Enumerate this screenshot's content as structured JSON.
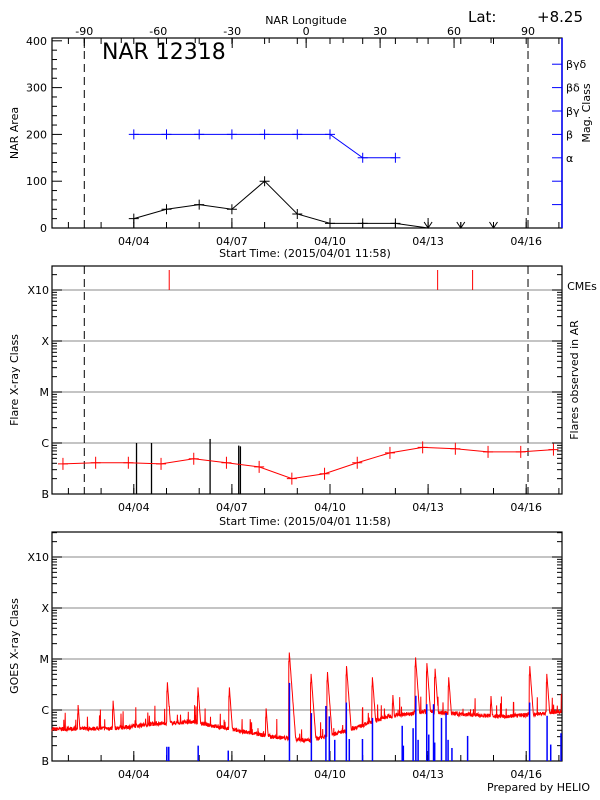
{
  "colors": {
    "axis": "#000000",
    "grid": "#a0a0a0",
    "mag": "#0000ff",
    "flare": "#ff0000",
    "goes_long": "#ff0000",
    "goes_short": "#0000ff",
    "cme": "#ff0000"
  },
  "header": {
    "lat_label": "Lat:",
    "lat_value": "+8.25",
    "region": "NAR 12318",
    "footer": "Prepared by HELIO"
  },
  "time_axis": {
    "start": "2015-04-01T11:58",
    "end": "2015-04-17T02:00",
    "xlabel": "Start Time: (2015/04/01 11:58)",
    "ticks": [
      {
        "date": "2015-04-04T00:00",
        "label": "04/04"
      },
      {
        "date": "2015-04-07T00:00",
        "label": "04/07"
      },
      {
        "date": "2015-04-10T00:00",
        "label": "04/10"
      },
      {
        "date": "2015-04-13T00:00",
        "label": "04/13"
      },
      {
        "date": "2015-04-16T00:00",
        "label": "04/16"
      }
    ],
    "limb_dates": [
      "2015-04-02T11:40",
      "2015-04-16T01:20"
    ]
  },
  "class_axis": {
    "ticks": [
      {
        "flux": 1e-07,
        "label": "B"
      },
      {
        "flux": 1e-06,
        "label": "C"
      },
      {
        "flux": 1e-05,
        "label": "M"
      },
      {
        "flux": 0.0001,
        "label": "X"
      },
      {
        "flux": 0.001,
        "label": "X10"
      }
    ],
    "ylim": [
      1e-07,
      0.003
    ],
    "scale": "log",
    "grid": true
  },
  "chart_data": [
    {
      "type": "line",
      "panel": "nar",
      "title": "NAR 12318",
      "ylabel": "NAR Area",
      "ylabel_right": "Mag. Class",
      "top_axis": {
        "label": "NAR Longitude",
        "ticks": [
          "-90",
          "-60",
          "-30",
          "0",
          "30",
          "60",
          "90"
        ],
        "range": [
          -90,
          90
        ]
      },
      "ylim": [
        0,
        406
      ],
      "yticks": [
        "0",
        "100",
        "200",
        "300",
        "400"
      ],
      "mag_ticks": [
        {
          "level": 50,
          "label": ""
        },
        {
          "level": 100,
          "label": ""
        },
        {
          "level": 150,
          "label": "α"
        },
        {
          "level": 200,
          "label": "β"
        },
        {
          "level": 250,
          "label": "βγ"
        },
        {
          "level": 300,
          "label": "βδ"
        },
        {
          "level": 350,
          "label": "βγδ"
        }
      ],
      "area": {
        "x": [
          "2015-04-04T00:00",
          "2015-04-05T00:00",
          "2015-04-06T00:00",
          "2015-04-07T00:00",
          "2015-04-08T00:00",
          "2015-04-09T00:00",
          "2015-04-10T00:00",
          "2015-04-11T00:00",
          "2015-04-12T00:00",
          "2015-04-13T00:00",
          "2015-04-14T00:00",
          "2015-04-15T00:00"
        ],
        "values": [
          20,
          40,
          50,
          40,
          100,
          30,
          10,
          10,
          10,
          0,
          0,
          0
        ]
      },
      "mag_class": {
        "x": [
          "2015-04-04T00:00",
          "2015-04-05T00:00",
          "2015-04-06T00:00",
          "2015-04-07T00:00",
          "2015-04-08T00:00",
          "2015-04-09T00:00",
          "2015-04-10T00:00",
          "2015-04-11T00:00",
          "2015-04-12T00:00"
        ],
        "values": [
          "β",
          "β",
          "β",
          "β",
          "β",
          "β",
          "β",
          "α",
          "α"
        ]
      }
    },
    {
      "type": "line",
      "panel": "flares",
      "ylabel": "Flare X-ray Class",
      "ylabel_right": "Flares observed in AR",
      "cme_label": "CMEs",
      "background": {
        "x": [
          "2015-04-01T20:00",
          "2015-04-02T20:00",
          "2015-04-03T20:00",
          "2015-04-04T20:00",
          "2015-04-05T20:00",
          "2015-04-06T20:00",
          "2015-04-07T20:00",
          "2015-04-08T20:00",
          "2015-04-09T20:00",
          "2015-04-10T20:00",
          "2015-04-11T20:00",
          "2015-04-12T20:00",
          "2015-04-13T20:00",
          "2015-04-14T20:00",
          "2015-04-15T20:00",
          "2015-04-16T20:00"
        ],
        "flux": [
          3.9e-07,
          4.1e-07,
          4.1e-07,
          3.9e-07,
          4.9e-07,
          4.1e-07,
          3.4e-07,
          2e-07,
          2.5e-07,
          4.1e-07,
          6.4e-07,
          8.2e-07,
          7.7e-07,
          6.7e-07,
          6.7e-07,
          7.4e-07
        ]
      },
      "flares": [
        {
          "date": "2015-04-04T02:00",
          "flux": 1e-06
        },
        {
          "date": "2015-04-04T13:00",
          "flux": 1e-06
        },
        {
          "date": "2015-04-06T08:00",
          "flux": 1.2e-06
        },
        {
          "date": "2015-04-07T05:00",
          "flux": 8.9e-07
        },
        {
          "date": "2015-04-07T06:15",
          "flux": 8.6e-07
        }
      ],
      "cmes": [
        "2015-04-05T02:00",
        "2015-04-13T07:00",
        "2015-04-14T08:40"
      ]
    },
    {
      "type": "line",
      "panel": "goes",
      "ylabel": "GOES X-ray Class",
      "long_channel_baseline": {
        "x": [
          "2015-04-01T12:00",
          "2015-04-03T12:00",
          "2015-04-04T16:00",
          "2015-04-05T20:00",
          "2015-04-07T01:00",
          "2015-04-08T05:00",
          "2015-04-09T10:00",
          "2015-04-10T14:00",
          "2015-04-11T19:00",
          "2015-04-12T23:00",
          "2015-04-14T04:00",
          "2015-04-15T08:00",
          "2015-04-16T12:00",
          "2015-04-17T02:00"
        ],
        "flux": [
          4.2e-07,
          4.4e-07,
          5.4e-07,
          5.8e-07,
          4.1e-07,
          3e-07,
          2.5e-07,
          4.1e-07,
          7.5e-07,
          9.4e-07,
          8.1e-07,
          7.5e-07,
          8.5e-07,
          9.4e-07
        ]
      },
      "long_channel_peaks": [
        {
          "date": "2015-04-02T07:00",
          "flux": 1.4e-06
        },
        {
          "date": "2015-04-03T08:40",
          "flux": 1.7e-06
        },
        {
          "date": "2015-04-05T00:30",
          "flux": 3.9e-06
        },
        {
          "date": "2015-04-05T23:00",
          "flux": 3.1e-06
        },
        {
          "date": "2015-04-06T22:00",
          "flux": 3.1e-06
        },
        {
          "date": "2015-04-08T01:00",
          "flux": 1.2e-06
        },
        {
          "date": "2015-04-08T18:00",
          "flux": 1.5e-05
        },
        {
          "date": "2015-04-09T10:00",
          "flux": 5.7e-06
        },
        {
          "date": "2015-04-09T22:00",
          "flux": 6.2e-06
        },
        {
          "date": "2015-04-10T12:00",
          "flux": 8.1e-06
        },
        {
          "date": "2015-04-11T07:00",
          "flux": 4.9e-06
        },
        {
          "date": "2015-04-11T22:00",
          "flux": 2.2e-06
        },
        {
          "date": "2015-04-12T14:40",
          "flux": 1.2e-05
        },
        {
          "date": "2015-04-12T23:00",
          "flux": 9.3e-06
        },
        {
          "date": "2015-04-13T05:00",
          "flux": 7.2e-06
        },
        {
          "date": "2015-04-13T15:00",
          "flux": 4.9e-06
        },
        {
          "date": "2015-04-14T22:00",
          "flux": 2.1e-06
        },
        {
          "date": "2015-04-16T02:30",
          "flux": 8.1e-06
        },
        {
          "date": "2015-04-16T15:00",
          "flux": 5.7e-06
        },
        {
          "date": "2015-04-17T02:00",
          "flux": 3.4e-06
        }
      ],
      "short_channel_peaks": [
        {
          "date": "2015-04-05T00:15",
          "flux": 1.9e-07
        },
        {
          "date": "2015-04-05T01:40",
          "flux": 1.9e-07
        },
        {
          "date": "2015-04-05T23:15",
          "flux": 2e-07
        },
        {
          "date": "2015-04-06T21:20",
          "flux": 1.6e-07
        },
        {
          "date": "2015-04-08T18:15",
          "flux": 3.4e-06
        },
        {
          "date": "2015-04-09T10:20",
          "flux": 8.7e-07
        },
        {
          "date": "2015-04-09T21:00",
          "flux": 1.2e-06
        },
        {
          "date": "2015-04-09T23:30",
          "flux": 7.5e-07
        },
        {
          "date": "2015-04-10T03:30",
          "flux": 2.6e-07
        },
        {
          "date": "2015-04-10T12:00",
          "flux": 1.4e-06
        },
        {
          "date": "2015-04-10T14:10",
          "flux": 2.7e-07
        },
        {
          "date": "2015-04-10T23:50",
          "flux": 2.7e-07
        },
        {
          "date": "2015-04-11T07:10",
          "flux": 7e-07
        },
        {
          "date": "2015-04-12T05:00",
          "flux": 4.9e-07
        },
        {
          "date": "2015-04-12T05:50",
          "flux": 2e-07
        },
        {
          "date": "2015-04-12T13:00",
          "flux": 4.4e-07
        },
        {
          "date": "2015-04-12T15:00",
          "flux": 1.9e-06
        },
        {
          "date": "2015-04-12T16:40",
          "flux": 2.6e-07
        },
        {
          "date": "2015-04-12T23:00",
          "flux": 1.3e-06
        },
        {
          "date": "2015-04-13T00:30",
          "flux": 3.3e-07
        },
        {
          "date": "2015-04-13T04:00",
          "flux": 1.3e-06
        },
        {
          "date": "2015-04-13T04:50",
          "flux": 2.3e-07
        },
        {
          "date": "2015-04-13T09:50",
          "flux": 7e-07
        },
        {
          "date": "2015-04-13T13:10",
          "flux": 8.7e-07
        },
        {
          "date": "2015-04-13T14:40",
          "flux": 2.6e-07
        },
        {
          "date": "2015-04-13T17:30",
          "flux": 1.8e-07
        },
        {
          "date": "2015-04-14T05:00",
          "flux": 3.1e-07
        },
        {
          "date": "2015-04-16T02:30",
          "flux": 1.4e-06
        },
        {
          "date": "2015-04-16T15:20",
          "flux": 7.7e-07
        },
        {
          "date": "2015-04-16T18:00",
          "flux": 2.1e-07
        },
        {
          "date": "2015-04-17T02:00",
          "flux": 3.5e-07
        }
      ]
    }
  ]
}
